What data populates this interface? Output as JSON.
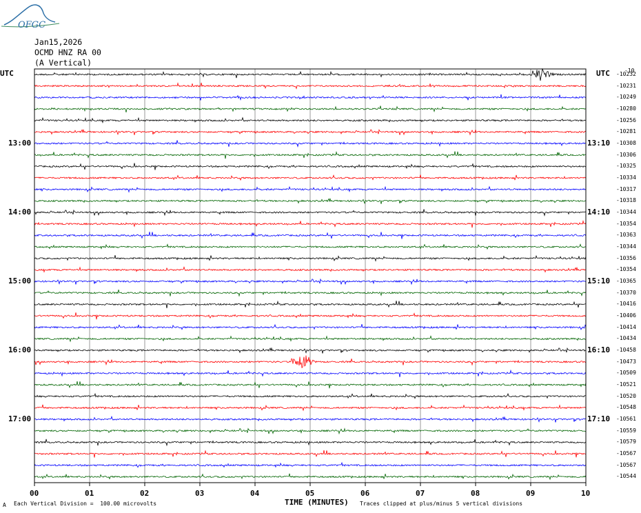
{
  "logo_text": "OFGC",
  "header": {
    "date": "Jan15,2026",
    "station": "OCMD HNZ RA 00",
    "component": "(A Vertical)"
  },
  "colors": {
    "trace_cycle": [
      "#000000",
      "#ff0000",
      "#0000ff",
      "#006400"
    ],
    "grid": "#808080",
    "logo": "#2a6ea6"
  },
  "chart_data": {
    "type": "line",
    "title": "",
    "xlabel": "TIME (MINUTES)",
    "ylabel": "",
    "xlim": [
      0,
      10
    ],
    "x_ticks": [
      "00",
      "01",
      "02",
      "03",
      "04",
      "05",
      "06",
      "07",
      "08",
      "09",
      "10"
    ],
    "left_axis_title": "UTC",
    "right_axis_title": "UTC",
    "top_right_label": "-10",
    "left_time_labels": [
      {
        "row": 6,
        "text": "13:00"
      },
      {
        "row": 12,
        "text": "14:00"
      },
      {
        "row": 18,
        "text": "15:00"
      },
      {
        "row": 24,
        "text": "16:00"
      },
      {
        "row": 30,
        "text": "17:00"
      }
    ],
    "right_time_labels": [
      {
        "row": 6,
        "text": "13:10"
      },
      {
        "row": 12,
        "text": "14:10"
      },
      {
        "row": 18,
        "text": "15:10"
      },
      {
        "row": 24,
        "text": "16:10"
      },
      {
        "row": 30,
        "text": "17:10"
      }
    ],
    "trace_offsets": [
      "-10232",
      "-10231",
      "-10249",
      "-10280",
      "-10256",
      "-10281",
      "-10308",
      "-10306",
      "-10325",
      "-10334",
      "-10317",
      "-10318",
      "-10344",
      "-10354",
      "-10363",
      "-10344",
      "-10356",
      "-10354",
      "-10365",
      "-10370",
      "-10416",
      "-10406",
      "-10414",
      "-10434",
      "-10458",
      "-10473",
      "-10509",
      "-10521",
      "-10520",
      "-10548",
      "-10561",
      "-10559",
      "-10579",
      "-10567",
      "-10567",
      "-10544"
    ],
    "events": [
      {
        "row": 25,
        "minute": 4.85,
        "amplitude": 1.6
      },
      {
        "row": 0,
        "minute": 9.2,
        "amplitude": 1.2
      }
    ],
    "clip_note": "Traces clipped at plus/minus 5 vertical divisions"
  },
  "footer": {
    "scale_note": "Each Vertical Division =  100.00 microvolts",
    "clip_note": "Traces clipped at plus/minus 5 vertical divisions",
    "corner_mark": "A"
  }
}
